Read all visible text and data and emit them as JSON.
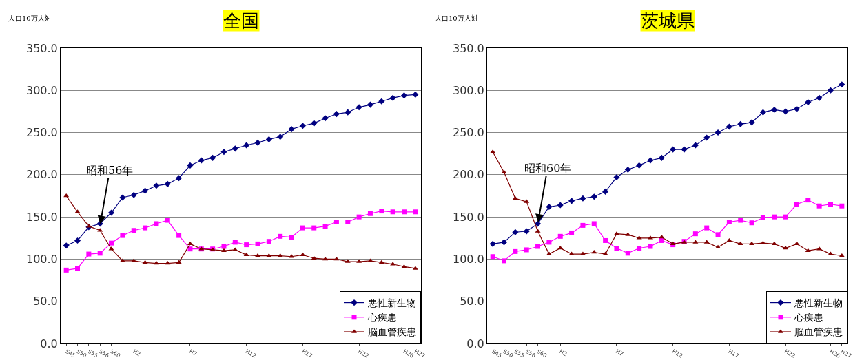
{
  "chart_data": [
    {
      "type": "line",
      "title": "全国",
      "ylabel": "人口10万人対",
      "categories": [
        "S45",
        "S50",
        "S55",
        "S56",
        "S60",
        null,
        "H2",
        null,
        null,
        null,
        null,
        "H7",
        null,
        null,
        null,
        null,
        "H12",
        null,
        null,
        null,
        null,
        "H17",
        null,
        null,
        null,
        null,
        "H22",
        null,
        null,
        null,
        "H26",
        "H27"
      ],
      "series": [
        {
          "name": "悪性新生物",
          "color": "#000080",
          "marker": "diamond",
          "values": [
            116,
            122,
            138,
            142,
            155,
            173,
            176,
            181,
            187,
            189,
            196,
            211,
            217,
            220,
            227,
            231,
            235,
            238,
            242,
            245,
            254,
            258,
            261,
            267,
            272,
            274,
            280,
            283,
            287,
            291,
            294,
            295
          ]
        },
        {
          "name": "心疾患",
          "color": "#ff00ff",
          "marker": "square",
          "values": [
            87,
            89,
            106,
            107,
            119,
            128,
            134,
            137,
            142,
            146,
            128,
            112,
            112,
            112,
            115,
            120,
            117,
            118,
            121,
            127,
            126,
            137,
            137,
            139,
            144,
            144,
            150,
            154,
            157,
            156,
            156,
            156
          ]
        },
        {
          "name": "脳血管疾患",
          "color": "#800000",
          "marker": "triangle",
          "values": [
            175,
            156,
            139,
            134,
            112,
            98,
            98,
            96,
            95,
            95,
            96,
            118,
            112,
            111,
            110,
            111,
            105,
            104,
            104,
            104,
            103,
            105,
            101,
            100,
            100,
            97,
            97,
            98,
            96,
            94,
            91,
            89
          ]
        }
      ],
      "ylim": [
        0,
        350
      ],
      "yticks": [
        {
          "value": 0,
          "label": "0.0"
        },
        {
          "value": 50,
          "label": "50.0"
        },
        {
          "value": 100,
          "label": "100.0"
        },
        {
          "value": 150,
          "label": "150.0"
        },
        {
          "value": 200,
          "label": "200.0"
        },
        {
          "value": 250,
          "label": "250.0"
        },
        {
          "value": 300,
          "label": "300.0"
        },
        {
          "value": 350,
          "label": "350.0"
        }
      ],
      "grid": "y",
      "legend": "bottom right",
      "annotations": [
        {
          "text": "昭和56年",
          "x": "S56",
          "y": 140
        }
      ]
    },
    {
      "type": "line",
      "title": "茨城県",
      "ylabel": "人口10万人対",
      "categories": [
        "S45",
        "S50",
        "S55",
        "S56",
        "S60",
        null,
        "H2",
        null,
        null,
        null,
        null,
        "H7",
        null,
        null,
        null,
        null,
        "H12",
        null,
        null,
        null,
        null,
        "H17",
        null,
        null,
        null,
        null,
        "H22",
        null,
        null,
        null,
        "H26",
        "H27"
      ],
      "series": [
        {
          "name": "悪性新生物",
          "color": "#000080",
          "marker": "diamond",
          "values": [
            118,
            120,
            132,
            133,
            142,
            162,
            164,
            169,
            172,
            174,
            180,
            197,
            206,
            211,
            217,
            220,
            230,
            230,
            235,
            244,
            250,
            257,
            260,
            262,
            274,
            277,
            275,
            278,
            286,
            291,
            300,
            307
          ]
        },
        {
          "name": "心疾患",
          "color": "#ff00ff",
          "marker": "square",
          "values": [
            103,
            98,
            109,
            111,
            115,
            120,
            127,
            131,
            140,
            142,
            122,
            113,
            107,
            113,
            115,
            122,
            117,
            121,
            130,
            137,
            129,
            144,
            146,
            143,
            149,
            150,
            150,
            165,
            170,
            163,
            165,
            163
          ]
        },
        {
          "name": "脳血管疾患",
          "color": "#800000",
          "marker": "triangle",
          "values": [
            227,
            203,
            172,
            168,
            133,
            106,
            113,
            106,
            106,
            108,
            106,
            130,
            129,
            125,
            125,
            126,
            118,
            120,
            120,
            120,
            114,
            122,
            118,
            118,
            119,
            118,
            113,
            118,
            110,
            112,
            106,
            104
          ]
        }
      ],
      "ylim": [
        0,
        350
      ],
      "yticks": [
        {
          "value": 0,
          "label": "0.0"
        },
        {
          "value": 50,
          "label": "50.0"
        },
        {
          "value": 100,
          "label": "100.0"
        },
        {
          "value": 150,
          "label": "150.0"
        },
        {
          "value": 200,
          "label": "200.0"
        },
        {
          "value": 250,
          "label": "250.0"
        },
        {
          "value": 300,
          "label": "300.0"
        },
        {
          "value": 350,
          "label": "350.0"
        }
      ],
      "grid": "y",
      "legend": "bottom right",
      "annotations": [
        {
          "text": "昭和60年",
          "x": "S60",
          "y": 142
        }
      ]
    }
  ]
}
